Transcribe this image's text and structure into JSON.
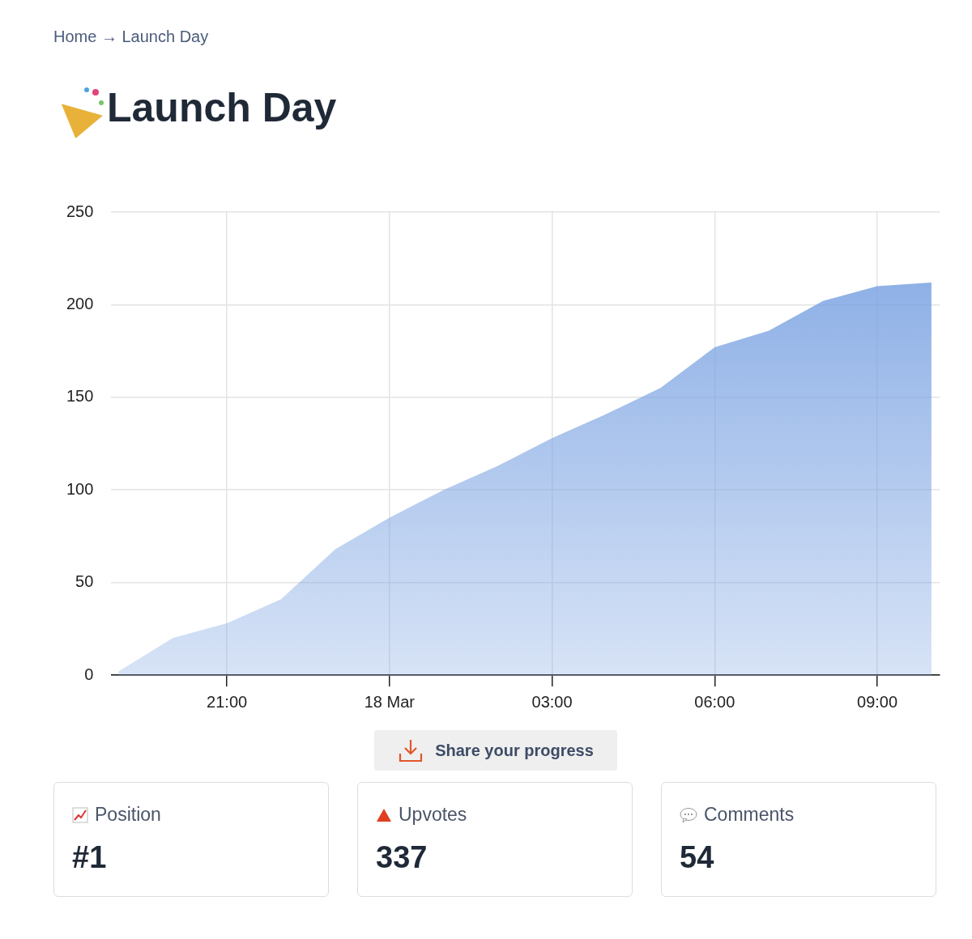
{
  "chart_data": [
    {
      "type": "area",
      "title": "Launch Day",
      "color": "#7ba3e2",
      "x": [
        "--03-17T19:00",
        "--03-17T20:00",
        "--03-17T21:00",
        "--03-17T22:00",
        "--03-17T23:00",
        "--03-18T00:00",
        "--03-18T01:00",
        "--03-18T02:00",
        "--03-18T03:00",
        "--03-18T04:00",
        "--03-18T05:00",
        "--03-18T06:00",
        "--03-18T07:00",
        "--03-18T08:00",
        "--03-18T09:00",
        "--03-18T10:00"
      ],
      "values": [
        2,
        20,
        28,
        41,
        68,
        85,
        100,
        113,
        128,
        141,
        155,
        177,
        186,
        202,
        210,
        212
      ],
      "xlim": [
        "--03-17T18:52",
        "--03-18T10:09"
      ],
      "xticks": [
        {
          "value": "--03-17T21:00",
          "label": "21:00"
        },
        {
          "value": "--03-18T00:00",
          "label": "18 Mar"
        },
        {
          "value": "--03-18T03:00",
          "label": "03:00"
        },
        {
          "value": "--03-18T06:00",
          "label": "06:00"
        },
        {
          "value": "--03-18T09:00",
          "label": "09:00"
        }
      ],
      "ylim": [
        0,
        250
      ],
      "yticks": [
        0,
        50,
        100,
        150,
        200,
        250
      ],
      "grid": true,
      "legend": false,
      "annotations": [
        "Home → Launch Day",
        "Share your progress"
      ]
    },
    {
      "type": "other",
      "annotations": [
        "Position",
        "#1",
        "Upvotes",
        "337",
        "Comments",
        "54"
      ]
    }
  ]
}
